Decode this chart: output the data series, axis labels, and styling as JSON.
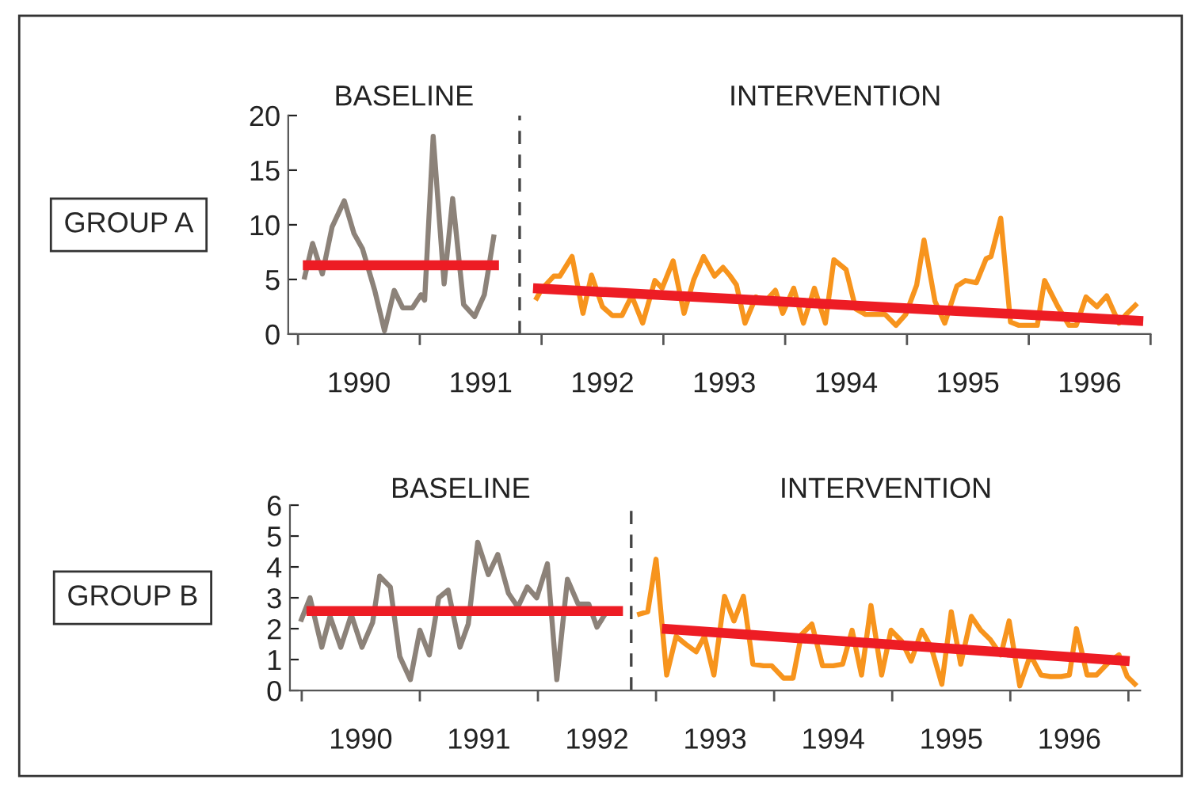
{
  "chart_data": [
    {
      "type": "line",
      "ylabel": "GROUP A",
      "xlim": [
        1989.92,
        1997.0
      ],
      "ylim": [
        0,
        20
      ],
      "yticks": [
        0,
        5,
        10,
        15,
        20
      ],
      "xticks": [
        {
          "value": 1990,
          "label": null
        },
        {
          "value": 1990.5,
          "label": "1990"
        },
        {
          "value": 1991,
          "label": null
        },
        {
          "value": 1991.5,
          "label": "1991"
        },
        {
          "value": 1992,
          "label": null
        },
        {
          "value": 1992.5,
          "label": "1992"
        },
        {
          "value": 1993,
          "label": null
        },
        {
          "value": 1993.5,
          "label": "1993"
        },
        {
          "value": 1994,
          "label": null
        },
        {
          "value": 1994.5,
          "label": "1994"
        },
        {
          "value": 1995,
          "label": null
        },
        {
          "value": 1995.5,
          "label": "1995"
        },
        {
          "value": 1996,
          "label": null
        },
        {
          "value": 1996.5,
          "label": "1996"
        },
        {
          "value": 1997,
          "label": null
        }
      ],
      "annotations": [
        "BASELINE",
        "INTERVENTION"
      ],
      "ref_lines": [
        {
          "axis": "x",
          "value": 1991.82,
          "line_style": "dashed",
          "color": "#444444"
        }
      ],
      "series": [
        {
          "color": "#8c8279",
          "x": [
            1990.05,
            1990.12,
            1990.2,
            1990.28,
            1990.38,
            1990.46,
            1990.53,
            1990.63,
            1990.71,
            1990.79,
            1990.86,
            1990.94,
            1991.01,
            1991.04,
            1991.11,
            1991.2,
            1991.27,
            1991.36,
            1991.45,
            1991.53,
            1991.61
          ],
          "values": [
            5.0,
            8.3,
            5.5,
            9.8,
            12.2,
            9.2,
            7.8,
            4.0,
            0.3,
            4.0,
            2.4,
            2.4,
            3.6,
            3.1,
            18.1,
            4.6,
            12.4,
            2.7,
            1.6,
            3.6,
            9.1
          ]
        },
        {
          "color": "#f7941d",
          "x": [
            1991.95,
            1992.0,
            1992.05,
            1992.1,
            1992.15,
            1992.25,
            1992.34,
            1992.41,
            1992.5,
            1992.58,
            1992.66,
            1992.74,
            1992.83,
            1992.93,
            1992.99,
            1993.08,
            1993.17,
            1993.25,
            1993.33,
            1993.42,
            1993.49,
            1993.55,
            1993.6,
            1993.67,
            1993.76,
            1993.83,
            1993.92,
            1993.98,
            1994.07,
            1994.15,
            1994.24,
            1994.33,
            1994.4,
            1994.5,
            1994.58,
            1994.66,
            1994.75,
            1994.82,
            1994.91,
            1994.99,
            1995.08,
            1995.14,
            1995.23,
            1995.31,
            1995.41,
            1995.48,
            1995.57,
            1995.65,
            1995.69,
            1995.77,
            1995.85,
            1995.92,
            1996.0,
            1996.07,
            1996.13,
            1996.24,
            1996.33,
            1996.39,
            1996.47,
            1996.56,
            1996.64,
            1996.74,
            1996.8,
            1996.89
          ],
          "values": [
            3.1,
            4.1,
            4.7,
            5.3,
            5.3,
            7.1,
            1.9,
            5.4,
            2.5,
            1.7,
            1.7,
            3.5,
            1.0,
            4.9,
            4.2,
            6.7,
            1.9,
            5.0,
            7.1,
            5.3,
            6.1,
            5.3,
            4.5,
            1.0,
            3.4,
            2.9,
            4.0,
            1.9,
            4.2,
            1.0,
            4.2,
            1.0,
            6.8,
            5.9,
            2.3,
            1.8,
            1.8,
            1.8,
            0.8,
            1.8,
            4.5,
            8.6,
            3.0,
            1.0,
            4.4,
            4.9,
            4.7,
            6.9,
            7.1,
            10.6,
            1.1,
            0.8,
            0.8,
            0.8,
            4.9,
            2.5,
            0.8,
            0.8,
            3.4,
            2.5,
            3.5,
            1.0,
            1.8,
            2.8
          ]
        },
        {
          "type": "line",
          "color": "#ed1c24",
          "x": [
            1990.04,
            1991.65
          ],
          "values": [
            6.3,
            6.3
          ]
        },
        {
          "type": "line",
          "color": "#ed1c24",
          "x": [
            1991.93,
            1996.94
          ],
          "values": [
            4.2,
            1.2
          ]
        }
      ]
    },
    {
      "type": "line",
      "ylabel": "GROUP B",
      "xlim": [
        1989.9,
        1997.1
      ],
      "ylim": [
        0,
        6
      ],
      "yticks": [
        0,
        1,
        2,
        3,
        4,
        5,
        6
      ],
      "xticks": [
        {
          "value": 1990,
          "label": null
        },
        {
          "value": 1990.5,
          "label": "1990"
        },
        {
          "value": 1991,
          "label": null
        },
        {
          "value": 1991.5,
          "label": "1991"
        },
        {
          "value": 1992,
          "label": null
        },
        {
          "value": 1992.5,
          "label": "1992"
        },
        {
          "value": 1993,
          "label": null
        },
        {
          "value": 1993.5,
          "label": "1993"
        },
        {
          "value": 1994,
          "label": null
        },
        {
          "value": 1994.5,
          "label": "1994"
        },
        {
          "value": 1995,
          "label": null
        },
        {
          "value": 1995.5,
          "label": "1995"
        },
        {
          "value": 1996,
          "label": null
        },
        {
          "value": 1996.5,
          "label": "1996"
        },
        {
          "value": 1997,
          "label": null
        }
      ],
      "annotations": [
        "BASELINE",
        "INTERVENTION"
      ],
      "ref_lines": [
        {
          "axis": "x",
          "value": 1992.79,
          "line_style": "dashed",
          "color": "#444444"
        }
      ],
      "series": [
        {
          "color": "#8c8279",
          "x": [
            1989.99,
            1990.07,
            1990.17,
            1990.24,
            1990.33,
            1990.42,
            1990.51,
            1990.6,
            1990.66,
            1990.75,
            1990.83,
            1990.92,
            1991.0,
            1991.08,
            1991.16,
            1991.24,
            1991.34,
            1991.41,
            1991.49,
            1991.58,
            1991.66,
            1991.75,
            1991.83,
            1991.91,
            1991.99,
            1992.08,
            1992.16,
            1992.25,
            1992.34,
            1992.43,
            1992.5,
            1992.59
          ],
          "values": [
            2.23,
            3.0,
            1.4,
            2.4,
            1.4,
            2.45,
            1.4,
            2.2,
            3.7,
            3.35,
            1.1,
            0.35,
            1.95,
            1.15,
            3.0,
            3.25,
            1.4,
            2.15,
            4.8,
            3.75,
            4.4,
            3.15,
            2.7,
            3.35,
            3.0,
            4.1,
            0.35,
            3.6,
            2.8,
            2.8,
            2.05,
            2.6
          ]
        },
        {
          "color": "#f7941d",
          "x": [
            1992.84,
            1992.93,
            1993.0,
            1993.09,
            1993.17,
            1993.25,
            1993.34,
            1993.41,
            1993.49,
            1993.58,
            1993.66,
            1993.74,
            1993.82,
            1993.91,
            1993.98,
            1994.08,
            1994.16,
            1994.23,
            1994.32,
            1994.41,
            1994.5,
            1994.58,
            1994.66,
            1994.74,
            1994.82,
            1994.91,
            1994.99,
            1995.08,
            1995.16,
            1995.25,
            1995.33,
            1995.42,
            1995.5,
            1995.58,
            1995.67,
            1995.75,
            1995.83,
            1995.92,
            1995.99,
            1996.08,
            1996.17,
            1996.26,
            1996.34,
            1996.43,
            1996.5,
            1996.56,
            1996.65,
            1996.73,
            1996.83,
            1996.92,
            1996.99,
            1997.07
          ],
          "values": [
            2.45,
            2.55,
            4.25,
            0.5,
            1.75,
            1.5,
            1.25,
            1.75,
            0.5,
            3.05,
            2.25,
            3.05,
            0.85,
            0.8,
            0.8,
            0.4,
            0.4,
            1.8,
            2.15,
            0.8,
            0.8,
            0.85,
            1.95,
            0.5,
            2.75,
            0.5,
            1.95,
            1.6,
            0.95,
            1.95,
            1.4,
            0.2,
            2.55,
            0.85,
            2.4,
            1.95,
            1.65,
            1.15,
            2.25,
            0.15,
            1.15,
            0.5,
            0.45,
            0.45,
            0.5,
            2.0,
            0.5,
            0.5,
            0.9,
            1.15,
            0.45,
            0.15
          ]
        },
        {
          "type": "line",
          "color": "#ed1c24",
          "x": [
            1990.04,
            1992.72
          ],
          "values": [
            2.57,
            2.57
          ]
        },
        {
          "type": "line",
          "color": "#ed1c24",
          "x": [
            1993.05,
            1997.01
          ],
          "values": [
            2.0,
            0.95
          ]
        }
      ]
    }
  ]
}
